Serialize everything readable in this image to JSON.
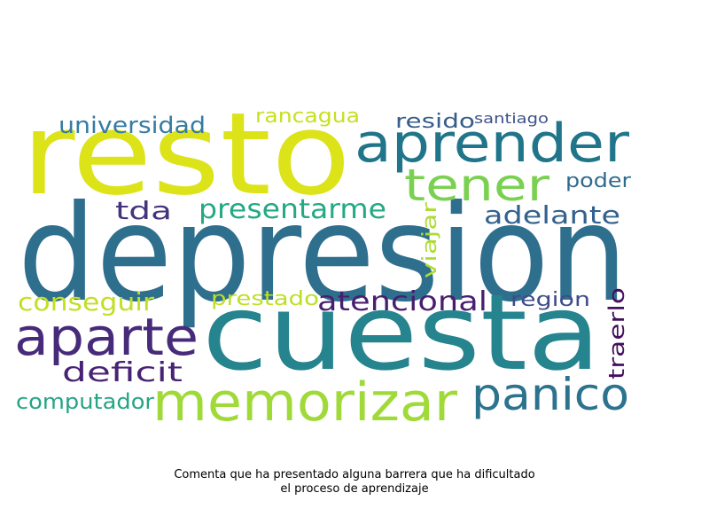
{
  "wordcloud": {
    "words": [
      {
        "text": "depresion",
        "color": "#2f6f8e"
      },
      {
        "text": "resto",
        "color": "#dce318"
      },
      {
        "text": "cuesta",
        "color": "#25848e"
      },
      {
        "text": "aprender",
        "color": "#20758a"
      },
      {
        "text": "memorizar",
        "color": "#a0da39"
      },
      {
        "text": "aparte",
        "color": "#472b7a"
      },
      {
        "text": "tener",
        "color": "#7ad151"
      },
      {
        "text": "panico",
        "color": "#2c738e"
      },
      {
        "text": "presentarme",
        "color": "#23a983"
      },
      {
        "text": "atencional",
        "color": "#481e6f"
      },
      {
        "text": "universidad",
        "color": "#357ba2"
      },
      {
        "text": "deficit",
        "color": "#482374"
      },
      {
        "text": "conseguir",
        "color": "#c2df23"
      },
      {
        "text": "adelante",
        "color": "#33628d"
      },
      {
        "text": "computador",
        "color": "#26a484"
      },
      {
        "text": "tda",
        "color": "#46337e"
      },
      {
        "text": "rancagua",
        "color": "#c7e020"
      },
      {
        "text": "prestado",
        "color": "#bddf26"
      },
      {
        "text": "region",
        "color": "#3e4c8a"
      },
      {
        "text": "poder",
        "color": "#2f6b8e"
      },
      {
        "text": "resido",
        "color": "#365d8d"
      },
      {
        "text": "viajar",
        "color": "#addc30"
      },
      {
        "text": "traerlo",
        "color": "#440f5b"
      },
      {
        "text": "santiago",
        "color": "#3b528b"
      }
    ]
  },
  "caption": {
    "line1": "Comenta que ha presentado alguna barrera que ha dificultado",
    "line2": "el proceso de aprendizaje"
  }
}
